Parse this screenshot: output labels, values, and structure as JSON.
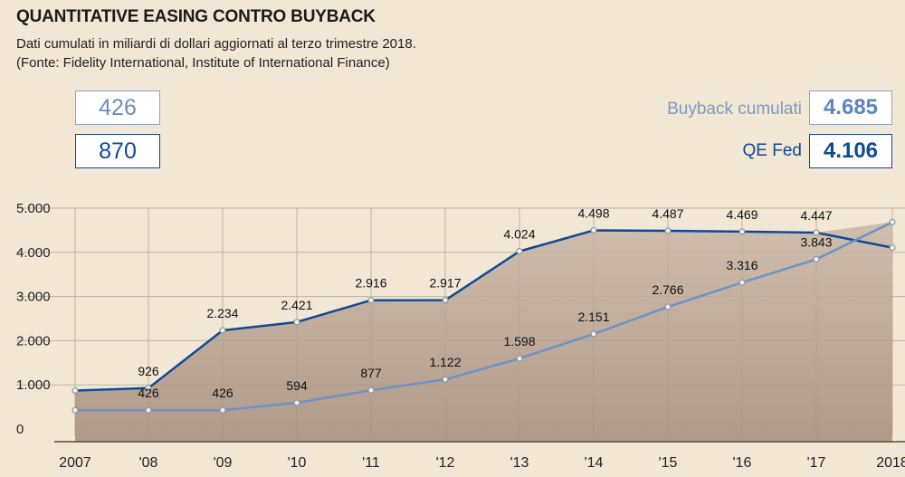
{
  "header": {
    "title": "QUANTITATIVE EASING CONTRO BUYBACK",
    "subtitle": "Dati cumulati in miliardi di dollari aggiornati al terzo trimestre 2018.",
    "source": "(Fonte: Fidelity International, Institute of International Finance)"
  },
  "start_boxes": {
    "buyback_start": "426",
    "qe_start": "870"
  },
  "legend": {
    "buyback_label": "Buyback cumulati",
    "buyback_value": "4.685",
    "qe_label": "QE Fed",
    "qe_value": "4.106"
  },
  "colors": {
    "background": "#f2e6d4",
    "qe": "#0e4a96",
    "buyback": "#6c93c8",
    "area_top": "#cbb6a6",
    "area_bottom": "#a48c7c",
    "grid": "#bfb2a3"
  },
  "chart_data": {
    "type": "line",
    "x": [
      "2007",
      "'08",
      "'09",
      "'10",
      "'11",
      "'12",
      "'13",
      "'14",
      "'15",
      "'16",
      "'17",
      "2018"
    ],
    "ylim": [
      0,
      5000
    ],
    "yticks": [
      0,
      1000,
      2000,
      3000,
      4000,
      5000
    ],
    "ytick_labels": [
      "0",
      "1.000",
      "2.000",
      "3.000",
      "4.000",
      "5.000"
    ],
    "series": [
      {
        "name": "QE Fed",
        "values": [
          870,
          926,
          2234,
          2421,
          2916,
          2917,
          4024,
          4498,
          4487,
          4469,
          4447,
          4106
        ],
        "labels": [
          "",
          "926",
          "2.234",
          "2.421",
          "2.916",
          "2.917",
          "4.024",
          "4.498",
          "4.487",
          "4.469",
          "4.447",
          ""
        ]
      },
      {
        "name": "Buyback cumulati",
        "values": [
          426,
          426,
          426,
          594,
          877,
          1122,
          1598,
          2151,
          2766,
          3316,
          3843,
          4685
        ],
        "labels": [
          "",
          "426",
          "426",
          "594",
          "877",
          "1.122",
          "1.598",
          "2.151",
          "2.766",
          "3.316",
          "3.843",
          ""
        ]
      }
    ],
    "grid": true
  }
}
